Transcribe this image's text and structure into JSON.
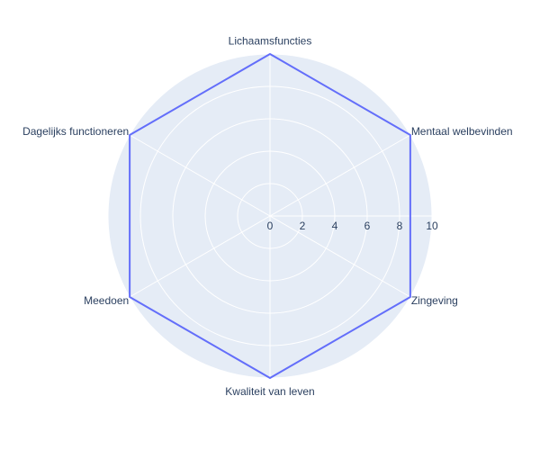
{
  "chart_data": {
    "type": "radar",
    "categories": [
      "Lichaamsfuncties",
      "Mentaal welbevinden",
      "Zingeving",
      "Kwaliteit van leven",
      "Meedoen",
      "Dagelijks functioneren"
    ],
    "series": [
      {
        "values": [
          10,
          10,
          10,
          10,
          10,
          10
        ]
      }
    ],
    "radial_range": [
      0,
      10
    ],
    "radial_ticks": [
      "0",
      "2",
      "4",
      "6",
      "8",
      "10"
    ],
    "grid": true,
    "colors": {
      "line": "#636efa",
      "polar_bg": "#e5ecf6",
      "grid": "#ffffff",
      "text": "#2a3f5f"
    }
  }
}
